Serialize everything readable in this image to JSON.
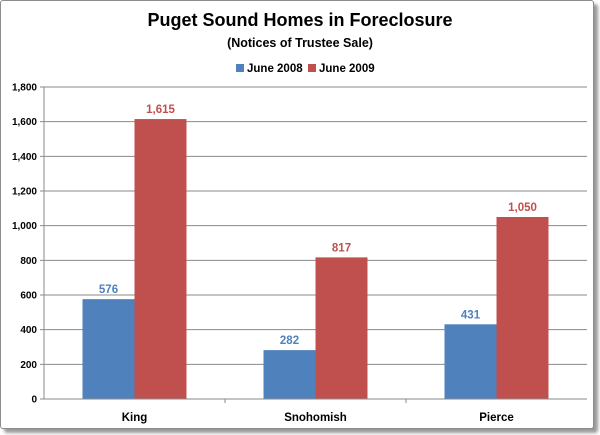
{
  "chart_data": {
    "type": "bar",
    "title": "Puget Sound Homes in Foreclosure",
    "subtitle": "(Notices of Trustee Sale)",
    "categories": [
      "King",
      "Snohomish",
      "Pierce"
    ],
    "series": [
      {
        "name": "June 2008",
        "values": [
          576,
          282,
          431
        ],
        "labels": [
          "576",
          "282",
          "431"
        ],
        "color": "#4f81bd"
      },
      {
        "name": "June 2009",
        "values": [
          1615,
          817,
          1050
        ],
        "labels": [
          "1,615",
          "817",
          "1,050"
        ],
        "color": "#c0504d"
      }
    ],
    "ylim": [
      0,
      1800
    ],
    "yticks": [
      0,
      200,
      400,
      600,
      800,
      1000,
      1200,
      1400,
      1600,
      1800
    ],
    "ytick_labels": [
      "0",
      "200",
      "400",
      "600",
      "800",
      "1,000",
      "1,200",
      "1,400",
      "1,600",
      "1,800"
    ],
    "grid": true,
    "legend_position": "top",
    "xlabel": "",
    "ylabel": ""
  }
}
